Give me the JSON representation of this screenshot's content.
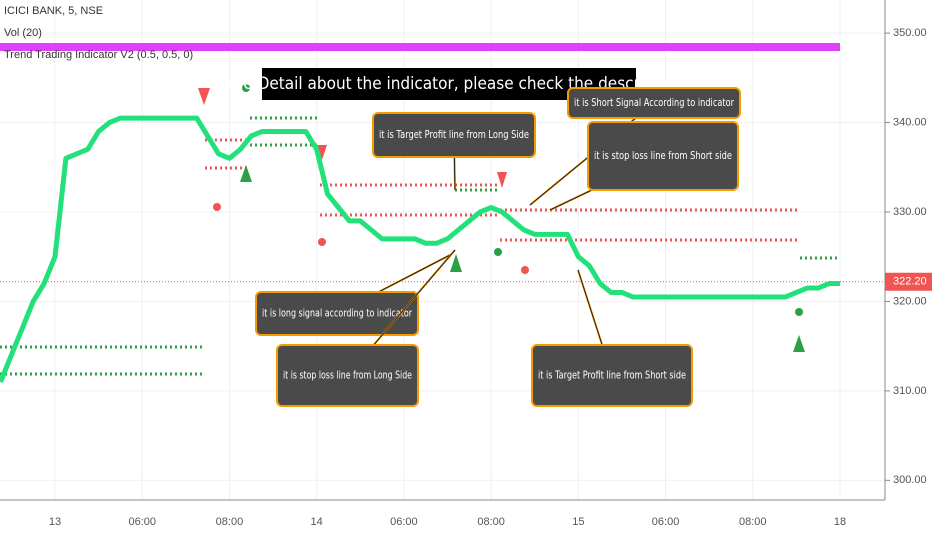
{
  "chart_data": {
    "type": "line",
    "symbol": "ICICI BANK, 5, NSE",
    "legend_items": [
      "Vol (20)",
      "Trend Trading Indicator V2 (0.5, 0.5, 0)"
    ],
    "banner": "More Detail about the indicator, please check the description",
    "categories": [
      null,
      null,
      null,
      null,
      null,
      "13",
      null,
      null,
      null,
      null,
      null,
      null,
      null,
      "06:00",
      null,
      null,
      null,
      null,
      null,
      null,
      null,
      "08:00",
      null,
      null,
      null,
      null,
      null,
      null,
      null,
      "14",
      null,
      null,
      null,
      null,
      null,
      null,
      null,
      "06:00",
      null,
      null,
      null,
      null,
      null,
      null,
      null,
      "08:00",
      null,
      null,
      null,
      null,
      null,
      null,
      null,
      "15",
      null,
      null,
      null,
      null,
      null,
      null,
      null,
      "06:00",
      null,
      null,
      null,
      null,
      null,
      null,
      null,
      "08:00",
      null,
      null,
      null,
      null,
      null,
      null,
      null,
      "18"
    ],
    "series": [
      {
        "color": "#22e07a",
        "values": [
          311,
          314,
          317,
          320,
          322,
          325,
          336,
          336.5,
          337,
          339,
          340,
          340.5,
          340.5,
          340.5,
          340.5,
          340.5,
          340.5,
          340.5,
          340.5,
          338.5,
          336.5,
          336,
          337,
          338.5,
          339,
          339,
          339,
          339,
          339,
          337,
          332,
          330.5,
          329,
          329,
          328,
          327,
          327,
          327,
          327,
          326.5,
          326.5,
          327,
          328,
          329,
          330,
          330.5,
          330,
          329,
          328,
          327.5,
          327.5,
          327.5,
          327.5,
          325,
          324,
          322,
          321,
          321,
          320.5,
          320.5,
          320.5,
          320.5,
          320.5,
          320.5,
          320.5,
          320.5,
          320.5,
          320.5,
          320.5,
          320.5,
          320.5,
          320.5,
          320.5,
          321,
          321.5,
          321.5,
          322,
          322
        ]
      }
    ],
    "ylim": [
      297.8,
      353.7
    ],
    "yticks": [
      {
        "value": 300,
        "label": "300.00"
      },
      {
        "value": 310,
        "label": "310.00"
      },
      {
        "value": 320,
        "label": "320.00"
      },
      {
        "value": 330,
        "label": "330.00"
      },
      {
        "value": 340,
        "label": "340.00"
      },
      {
        "value": 350,
        "label": "350.00"
      }
    ],
    "last_price": {
      "value": 322.2,
      "label": "322.20"
    },
    "annotations": [
      "it is Target Profit line from Long Side",
      "it is Short Signal According to indicator",
      "it is stop loss line from Short side",
      "it is long signal according to indicator",
      "it is stop loss line from Long Side",
      "it is Target Profit line from Short side"
    ]
  }
}
